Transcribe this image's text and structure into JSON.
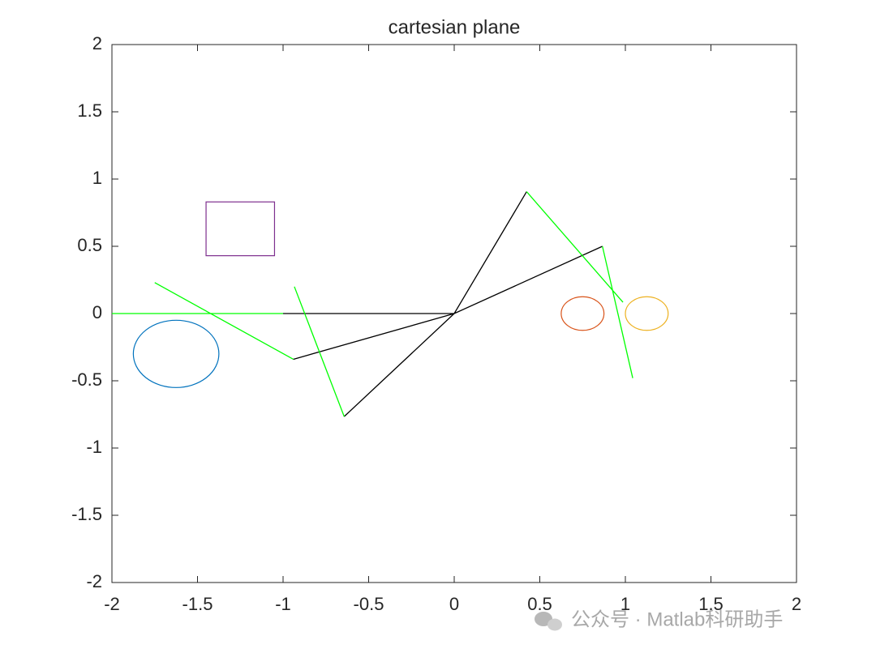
{
  "chart_data": {
    "type": "line",
    "title": "cartesian plane",
    "xlim": [
      -2,
      2
    ],
    "ylim": [
      -2,
      2
    ],
    "xticks": [
      -2,
      -1.5,
      -1,
      -0.5,
      0,
      0.5,
      1,
      1.5,
      2
    ],
    "yticks": [
      -2,
      -1.5,
      -1,
      -0.5,
      0,
      0.5,
      1,
      1.5,
      2
    ],
    "series": [
      {
        "color": "#000000",
        "x": [
          -1,
          0,
          null,
          0,
          0.866,
          null,
          0,
          -0.94,
          null,
          0,
          0.423,
          null,
          0,
          -0.643
        ],
        "values": [
          0,
          0,
          null,
          0,
          0.5,
          null,
          0,
          -0.34,
          null,
          0,
          0.906,
          null,
          0,
          -0.766
        ]
      },
      {
        "color": "#00ff00",
        "x": [
          -2,
          -1,
          null,
          -1.75,
          -0.94,
          null,
          -0.934,
          -0.643,
          null,
          0.423,
          0.986,
          null,
          0.866,
          1.043
        ],
        "values": [
          0,
          0,
          null,
          0.23,
          -0.34,
          null,
          0.2,
          -0.766,
          null,
          0.906,
          0.084,
          null,
          0.5,
          -0.48
        ]
      }
    ],
    "shapes": [
      {
        "kind": "circle",
        "color": "#0072bd",
        "center": [
          -1.625,
          -0.3
        ],
        "radius": 0.25
      },
      {
        "kind": "circle",
        "color": "#d95319",
        "center": [
          0.75,
          0
        ],
        "radius": 0.125
      },
      {
        "kind": "circle",
        "color": "#edb120",
        "center": [
          1.125,
          0
        ],
        "radius": 0.125
      },
      {
        "kind": "rect",
        "color": "#7e2f8e",
        "x": [
          -1.45,
          -1.05
        ],
        "y": [
          0.43,
          0.83
        ]
      }
    ]
  },
  "watermark": "公众号 · Matlab科研助手"
}
